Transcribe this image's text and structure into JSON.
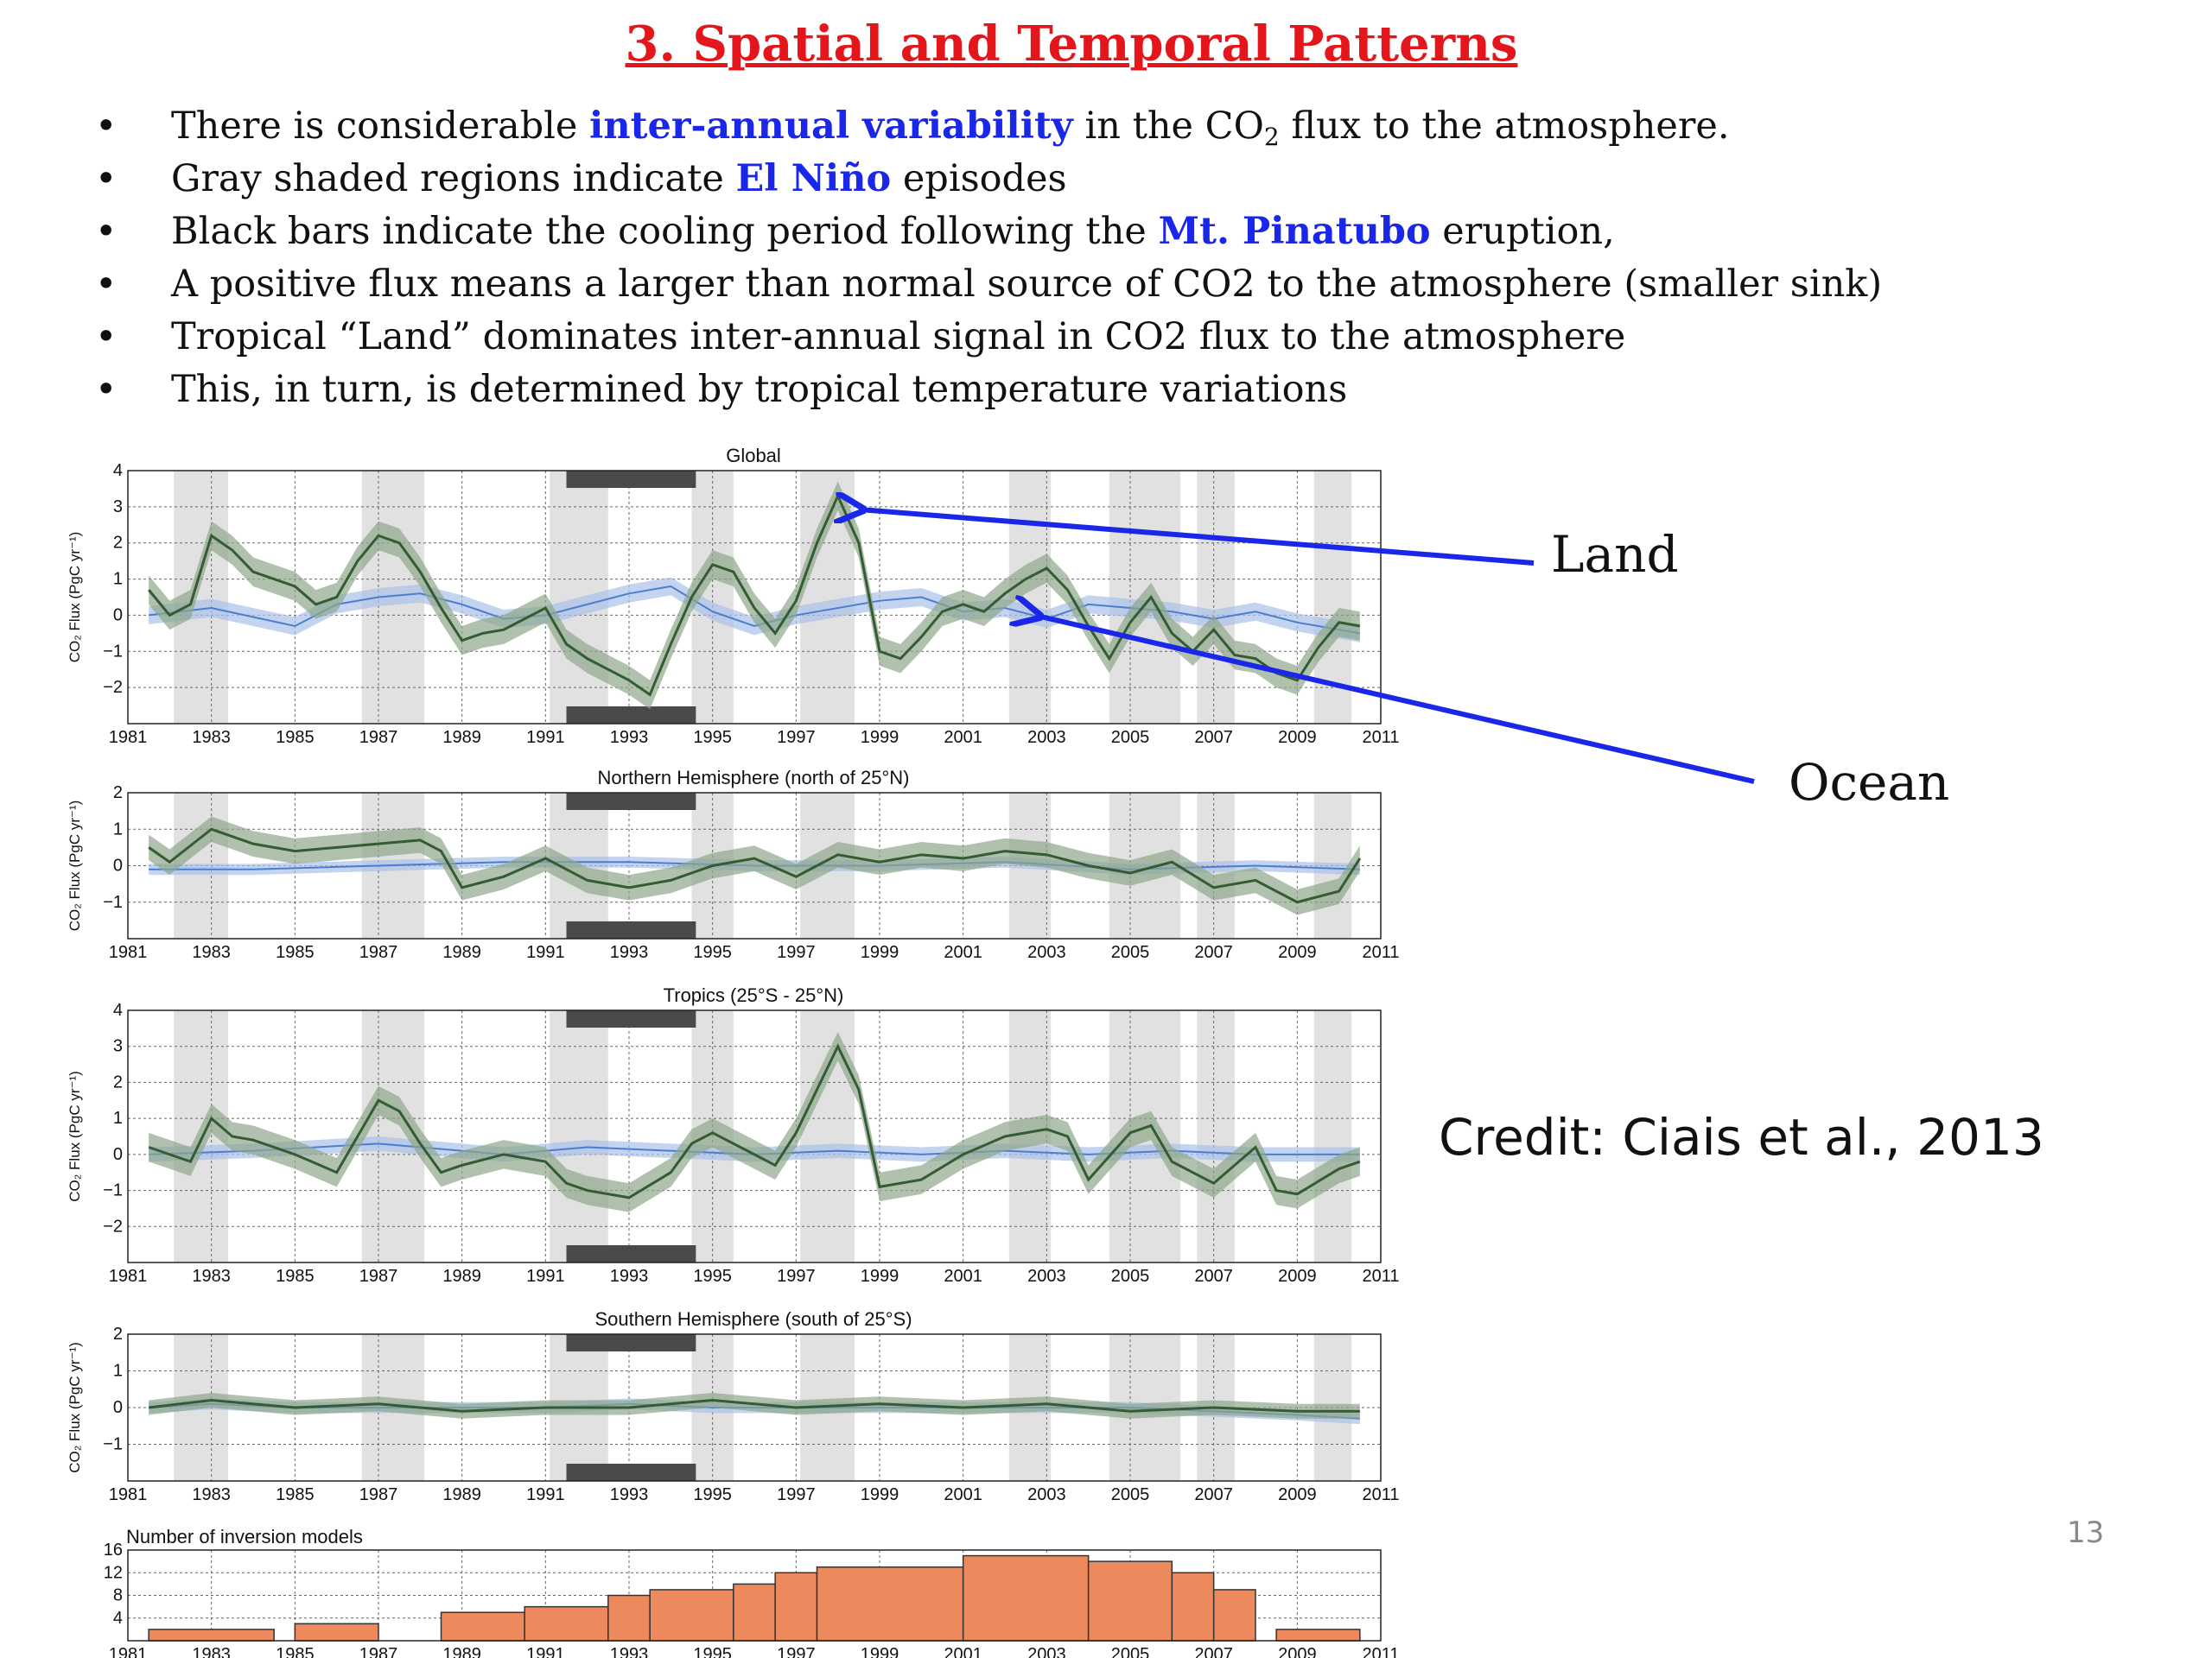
{
  "slide": {
    "title": "3. Spatial and Temporal Patterns",
    "bullets": [
      {
        "pre": "There is considerable ",
        "hl": "inter-annual variability",
        "mid": " in the CO",
        "sub": "2",
        "post": " flux to the atmosphere."
      },
      {
        "pre": "Gray shaded regions indicate ",
        "hl": "El Niño",
        "post": " episodes"
      },
      {
        "pre": "Black bars indicate the cooling period following the ",
        "hl": "Mt. Pinatubo",
        "post": " eruption,"
      },
      {
        "text": "A positive flux means a larger than normal source of CO2 to the atmosphere (smaller sink)"
      },
      {
        "text": "Tropical “Land” dominates inter-annual signal in CO2 flux to the atmosphere"
      },
      {
        "text": "This, in turn, is determined by tropical temperature variations"
      }
    ],
    "callouts": {
      "land": "Land",
      "ocean": "Ocean"
    },
    "credit": "Credit: Ciais et al., 2013",
    "page_number": "13",
    "colors": {
      "title": "#e4161b",
      "highlight": "#1a26e8",
      "arrow": "#1a26e8",
      "land": "#355b35",
      "land_band": "#8fa78a",
      "ocean": "#4a7fd0",
      "ocean_band": "#a9c1e9",
      "bars": "#ec8a5e",
      "nino": "#e1e1e1",
      "pinatubo": "#4a4a4a"
    }
  },
  "chart_data": [
    {
      "type": "line",
      "title": "Global",
      "ylabel": "CO₂ Flux (PgC yr⁻¹)",
      "xlim": [
        1981,
        2011
      ],
      "ylim": [
        -3,
        4
      ],
      "yticks": [
        -2,
        -1,
        0,
        1,
        2,
        3,
        4
      ],
      "xticks": [
        "1981",
        "1983",
        "1985",
        "1987",
        "1989",
        "1991",
        "1993",
        "1995",
        "1997",
        "1999",
        "2001",
        "2003",
        "2005",
        "2007",
        "2009",
        "2011"
      ],
      "grid": true,
      "nino_periods": [
        [
          1982.1,
          1983.4
        ],
        [
          1986.6,
          1988.1
        ],
        [
          1991.1,
          1992.5
        ],
        [
          1994.5,
          1995.5
        ],
        [
          1997.1,
          1998.4
        ],
        [
          2002.1,
          2003.1
        ],
        [
          2004.5,
          2006.2
        ],
        [
          2006.6,
          2007.5
        ],
        [
          2009.4,
          2010.3
        ]
      ],
      "pinatubo_period": [
        1991.5,
        1994.6
      ],
      "series": [
        {
          "x": [
            1981.5,
            1982,
            1982.5,
            1983,
            1983.5,
            1984,
            1984.5,
            1985,
            1985.5,
            1986,
            1986.5,
            1987,
            1987.5,
            1988,
            1988.5,
            1989,
            1989.5,
            1990,
            1990.5,
            1991,
            1991.5,
            1992,
            1992.5,
            1993,
            1993.5,
            1994,
            1994.5,
            1995,
            1995.5,
            1996,
            1996.5,
            1997,
            1997.5,
            1998,
            1998.5,
            1999,
            1999.5,
            2000,
            2000.5,
            2001,
            2001.5,
            2002,
            2002.5,
            2003,
            2003.5,
            2004,
            2004.5,
            2005,
            2005.5,
            2006,
            2006.5,
            2007,
            2007.5,
            2008,
            2008.5,
            2009,
            2009.5,
            2010,
            2010.5
          ],
          "y": [
            0.7,
            0.0,
            0.3,
            2.2,
            1.8,
            1.2,
            1.0,
            0.8,
            0.3,
            0.5,
            1.5,
            2.2,
            2.0,
            1.2,
            0.2,
            -0.7,
            -0.5,
            -0.4,
            -0.1,
            0.2,
            -0.8,
            -1.2,
            -1.5,
            -1.8,
            -2.2,
            -0.8,
            0.5,
            1.4,
            1.2,
            0.2,
            -0.5,
            0.4,
            2.0,
            3.3,
            2.0,
            -1.0,
            -1.2,
            -0.6,
            0.1,
            0.3,
            0.1,
            0.6,
            1.0,
            1.3,
            0.7,
            -0.3,
            -1.2,
            -0.2,
            0.5,
            -0.5,
            -1.0,
            -0.4,
            -1.1,
            -1.2,
            -1.6,
            -1.8,
            -0.9,
            -0.2,
            -0.3
          ],
          "band": 0.4
        },
        {
          "x": [
            1981.5,
            1983,
            1985,
            1986,
            1987,
            1988,
            1989,
            1990,
            1991,
            1992,
            1993,
            1994,
            1995,
            1996,
            1997,
            1998,
            1999,
            2000,
            2001,
            2002,
            2003,
            2004,
            2005,
            2006,
            2007,
            2008,
            2009,
            2010,
            2010.5
          ],
          "y": [
            0.0,
            0.2,
            -0.3,
            0.3,
            0.5,
            0.6,
            0.3,
            -0.1,
            0.0,
            0.3,
            0.6,
            0.8,
            0.1,
            -0.3,
            0.0,
            0.2,
            0.4,
            0.5,
            0.1,
            0.2,
            -0.1,
            0.3,
            0.2,
            0.1,
            -0.1,
            0.1,
            -0.2,
            -0.4,
            -0.5
          ],
          "band": 0.25
        }
      ]
    },
    {
      "type": "line",
      "title": "Northern Hemisphere (north of 25°N)",
      "ylabel": "CO₂ Flux (PgC yr⁻¹)",
      "xlim": [
        1981,
        2011
      ],
      "ylim": [
        -2,
        2
      ],
      "yticks": [
        -1,
        0,
        1,
        2
      ],
      "xticks": [
        "1981",
        "1983",
        "1985",
        "1987",
        "1989",
        "1991",
        "1993",
        "1995",
        "1997",
        "1999",
        "2001",
        "2003",
        "2005",
        "2007",
        "2009",
        "2011"
      ],
      "grid": true,
      "nino_periods": [
        [
          1982.1,
          1983.4
        ],
        [
          1986.6,
          1988.1
        ],
        [
          1991.1,
          1992.5
        ],
        [
          1994.5,
          1995.5
        ],
        [
          1997.1,
          1998.4
        ],
        [
          2002.1,
          2003.1
        ],
        [
          2004.5,
          2006.2
        ],
        [
          2006.6,
          2007.5
        ],
        [
          2009.4,
          2010.3
        ]
      ],
      "pinatubo_period": [
        1991.5,
        1994.6
      ],
      "series": [
        {
          "x": [
            1981.5,
            1982,
            1983,
            1984,
            1985,
            1986,
            1987,
            1988,
            1988.5,
            1989,
            1990,
            1991,
            1992,
            1993,
            1994,
            1995,
            1996,
            1997,
            1998,
            1999,
            2000,
            2001,
            2002,
            2003,
            2004,
            2005,
            2006,
            2007,
            2008,
            2009,
            2010,
            2010.5
          ],
          "y": [
            0.5,
            0.1,
            1.0,
            0.6,
            0.4,
            0.5,
            0.6,
            0.7,
            0.4,
            -0.6,
            -0.3,
            0.2,
            -0.4,
            -0.6,
            -0.4,
            0.0,
            0.2,
            -0.3,
            0.3,
            0.1,
            0.3,
            0.2,
            0.4,
            0.3,
            0.0,
            -0.2,
            0.1,
            -0.6,
            -0.4,
            -1.0,
            -0.7,
            0.2
          ],
          "band": 0.35
        },
        {
          "x": [
            1981.5,
            1984,
            1987,
            1990,
            1993,
            1996,
            1999,
            2002,
            2005,
            2008,
            2010.5
          ],
          "y": [
            -0.1,
            -0.1,
            0.0,
            0.1,
            0.1,
            0.0,
            0.0,
            0.1,
            -0.1,
            0.0,
            -0.1
          ],
          "band": 0.15
        }
      ]
    },
    {
      "type": "line",
      "title": "Tropics (25°S - 25°N)",
      "ylabel": "CO₂ Flux (PgC yr⁻¹)",
      "xlim": [
        1981,
        2011
      ],
      "ylim": [
        -3,
        4
      ],
      "yticks": [
        -2,
        -1,
        0,
        1,
        2,
        3,
        4
      ],
      "xticks": [
        "1981",
        "1983",
        "1985",
        "1987",
        "1989",
        "1991",
        "1993",
        "1995",
        "1997",
        "1999",
        "2001",
        "2003",
        "2005",
        "2007",
        "2009",
        "2011"
      ],
      "grid": true,
      "nino_periods": [
        [
          1982.1,
          1983.4
        ],
        [
          1986.6,
          1988.1
        ],
        [
          1991.1,
          1992.5
        ],
        [
          1994.5,
          1995.5
        ],
        [
          1997.1,
          1998.4
        ],
        [
          2002.1,
          2003.1
        ],
        [
          2004.5,
          2006.2
        ],
        [
          2006.6,
          2007.5
        ],
        [
          2009.4,
          2010.3
        ]
      ],
      "pinatubo_period": [
        1991.5,
        1994.6
      ],
      "series": [
        {
          "x": [
            1981.5,
            1982,
            1982.5,
            1983,
            1983.5,
            1984,
            1985,
            1986,
            1986.5,
            1987,
            1987.5,
            1988,
            1988.5,
            1989,
            1990,
            1991,
            1991.5,
            1992,
            1993,
            1994,
            1994.5,
            1995,
            1996,
            1996.5,
            1997,
            1997.5,
            1998,
            1998.5,
            1999,
            2000,
            2001,
            2002,
            2003,
            2003.5,
            2004,
            2005,
            2005.5,
            2006,
            2007,
            2008,
            2008.5,
            2009,
            2010,
            2010.5
          ],
          "y": [
            0.2,
            0.0,
            -0.2,
            1.0,
            0.5,
            0.4,
            0.0,
            -0.5,
            0.5,
            1.5,
            1.2,
            0.3,
            -0.5,
            -0.3,
            0.0,
            -0.2,
            -0.8,
            -1.0,
            -1.2,
            -0.5,
            0.3,
            0.6,
            0.0,
            -0.3,
            0.6,
            1.8,
            3.0,
            1.8,
            -0.9,
            -0.7,
            0.0,
            0.5,
            0.7,
            0.5,
            -0.7,
            0.6,
            0.8,
            -0.2,
            -0.8,
            0.2,
            -1.0,
            -1.1,
            -0.4,
            -0.2
          ],
          "band": 0.4
        },
        {
          "x": [
            1981.5,
            1984,
            1987,
            1988,
            1990,
            1992,
            1994,
            1996,
            1998,
            2000,
            2002,
            2004,
            2006,
            2008,
            2010.5
          ],
          "y": [
            0.0,
            0.1,
            0.3,
            0.2,
            0.0,
            0.2,
            0.1,
            0.0,
            0.1,
            0.0,
            0.1,
            0.0,
            0.1,
            0.0,
            0.0
          ],
          "band": 0.2
        }
      ]
    },
    {
      "type": "line",
      "title": "Southern Hemisphere (south of 25°S)",
      "ylabel": "CO₂ Flux (PgC yr⁻¹)",
      "xlim": [
        1981,
        2011
      ],
      "ylim": [
        -2,
        2
      ],
      "yticks": [
        -1,
        0,
        1,
        2
      ],
      "xticks": [
        "1981",
        "1983",
        "1985",
        "1987",
        "1989",
        "1991",
        "1993",
        "1995",
        "1997",
        "1999",
        "2001",
        "2003",
        "2005",
        "2007",
        "2009",
        "2011"
      ],
      "grid": true,
      "nino_periods": [
        [
          1982.1,
          1983.4
        ],
        [
          1986.6,
          1988.1
        ],
        [
          1991.1,
          1992.5
        ],
        [
          1994.5,
          1995.5
        ],
        [
          1997.1,
          1998.4
        ],
        [
          2002.1,
          2003.1
        ],
        [
          2004.5,
          2006.2
        ],
        [
          2006.6,
          2007.5
        ],
        [
          2009.4,
          2010.3
        ]
      ],
      "pinatubo_period": [
        1991.5,
        1994.6
      ],
      "series": [
        {
          "x": [
            1981.5,
            1983,
            1985,
            1987,
            1989,
            1991,
            1993,
            1995,
            1997,
            1999,
            2001,
            2003,
            2005,
            2007,
            2009,
            2010.5
          ],
          "y": [
            0.0,
            0.2,
            0.0,
            0.1,
            -0.1,
            0.0,
            0.0,
            0.2,
            0.0,
            0.1,
            0.0,
            0.1,
            -0.1,
            0.0,
            -0.1,
            -0.1
          ],
          "band": 0.2
        },
        {
          "x": [
            1981.5,
            1983,
            1985,
            1987,
            1989,
            1991,
            1993,
            1995,
            1997,
            1999,
            2001,
            2003,
            2005,
            2007,
            2009,
            2010.5
          ],
          "y": [
            0.0,
            0.1,
            0.0,
            0.0,
            0.0,
            0.0,
            0.1,
            0.0,
            0.0,
            0.0,
            0.0,
            0.0,
            0.0,
            -0.1,
            -0.2,
            -0.3
          ],
          "band": 0.15
        }
      ]
    },
    {
      "type": "bar",
      "title": "Number of inversion models",
      "xlim": [
        1981,
        2011
      ],
      "ylim": [
        0,
        16
      ],
      "yticks": [
        4,
        8,
        12,
        16
      ],
      "xticks": [
        "1981",
        "1983",
        "1985",
        "1987",
        "1989",
        "1991",
        "1993",
        "1995",
        "1997",
        "1999",
        "2001",
        "2003",
        "2005",
        "2007",
        "2009",
        "2011"
      ],
      "grid": true,
      "bins": [
        [
          1981.5,
          1984.5
        ],
        [
          1985,
          1987
        ],
        [
          1988.5,
          1990.5
        ],
        [
          1990.5,
          1992.5
        ],
        [
          1992.5,
          1993.5
        ],
        [
          1993.5,
          1995.5
        ],
        [
          1995.5,
          1996.5
        ],
        [
          1996.5,
          1997.5
        ],
        [
          1997.5,
          2001
        ],
        [
          2001,
          2004
        ],
        [
          2004,
          2006
        ],
        [
          2006,
          2007
        ],
        [
          2007,
          2008
        ],
        [
          2008.5,
          2010.5
        ]
      ],
      "values": [
        2,
        3,
        5,
        6,
        8,
        9,
        10,
        12,
        13,
        15,
        14,
        12,
        9,
        2
      ]
    }
  ]
}
